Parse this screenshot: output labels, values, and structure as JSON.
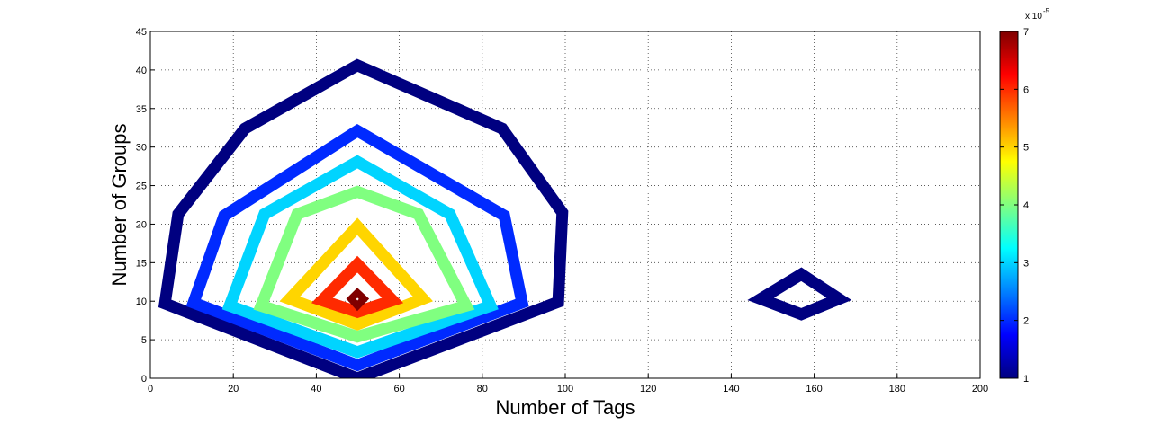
{
  "chart_data": {
    "type": "contour",
    "xlabel": "Number of Tags",
    "ylabel": "Number of Groups",
    "xlim": [
      0,
      200
    ],
    "ylim": [
      0,
      45
    ],
    "xticks": [
      0,
      20,
      40,
      60,
      80,
      100,
      120,
      140,
      160,
      180,
      200
    ],
    "yticks": [
      0,
      5,
      10,
      15,
      20,
      25,
      30,
      35,
      40,
      45
    ],
    "grid": true,
    "colorbar": {
      "lim": [
        1,
        7
      ],
      "ticks": [
        1,
        2,
        3,
        4,
        5,
        6,
        7
      ],
      "multiplier": "x 10",
      "exponent": "-5"
    },
    "contours": [
      {
        "level": 1,
        "x": [
          49.9,
          3.5,
          6.7,
          22.8,
          49.9,
          84.8,
          99.3,
          98.3
        ],
        "y": [
          0,
          9.7,
          21.3,
          32.4,
          40.6,
          32.4,
          21.5,
          9.9
        ]
      },
      {
        "level": 1,
        "x": [
          147.1,
          156.9,
          166,
          156.9
        ],
        "y": [
          10.3,
          13.5,
          10.3,
          8.3
        ]
      },
      {
        "level": 2,
        "x": [
          49.9,
          10.4,
          17.8,
          49.9,
          85.3,
          89.6
        ],
        "y": [
          1.7,
          9.8,
          21.1,
          32.1,
          21.1,
          9.8
        ]
      },
      {
        "level": 3,
        "x": [
          49.9,
          19.1,
          27.5,
          49.9,
          72.2,
          82
        ],
        "y": [
          3.4,
          9.4,
          21.3,
          28.1,
          21.3,
          9.4
        ]
      },
      {
        "level": 4,
        "x": [
          49.9,
          26.7,
          35.4,
          49.9,
          64.6,
          76.1
        ],
        "y": [
          5.4,
          9.4,
          21.3,
          24.2,
          21.3,
          9.4
        ]
      },
      {
        "level": 5,
        "x": [
          49.9,
          33.6,
          49.9,
          65.7
        ],
        "y": [
          7,
          10.3,
          19.7,
          10.3
        ]
      },
      {
        "level": 6,
        "x": [
          49.9,
          41.4,
          49.9,
          58.4
        ],
        "y": [
          8.6,
          10.1,
          14.8,
          10.1
        ]
      },
      {
        "level": 7,
        "x": [
          48.4,
          49.9,
          51.5,
          49.9
        ],
        "y": [
          10.3,
          11.1,
          10.3,
          9.4
        ]
      }
    ]
  }
}
